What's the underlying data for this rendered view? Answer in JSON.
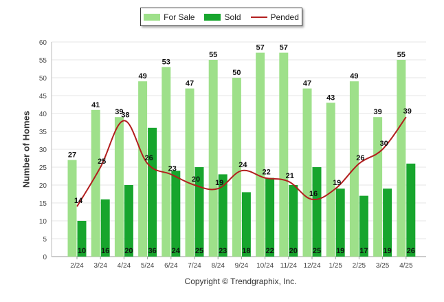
{
  "chart_data": {
    "type": "bar",
    "ylabel": "Number of Homes",
    "ylim": [
      0,
      60
    ],
    "yticks": [
      "0",
      "5",
      "10",
      "15",
      "20",
      "25",
      "30",
      "35",
      "40",
      "45",
      "50",
      "55",
      "60"
    ],
    "categories": [
      "2/24",
      "3/24",
      "4/24",
      "5/24",
      "6/24",
      "7/24",
      "8/24",
      "9/24",
      "10/24",
      "11/24",
      "12/24",
      "1/25",
      "2/25",
      "3/25",
      "4/25"
    ],
    "series": [
      {
        "name": "For Sale",
        "type": "bar",
        "color": "#9ee08a",
        "values": [
          27,
          41,
          39,
          49,
          53,
          47,
          55,
          50,
          57,
          57,
          47,
          43,
          49,
          39,
          55
        ]
      },
      {
        "name": "Sold",
        "type": "bar",
        "color": "#17a52d",
        "values": [
          10,
          16,
          20,
          36,
          24,
          25,
          23,
          18,
          22,
          20,
          25,
          19,
          17,
          19,
          26
        ]
      },
      {
        "name": "Pended",
        "type": "line",
        "color": "#b21e1e",
        "values": [
          14,
          25,
          38,
          26,
          23,
          20,
          19,
          24,
          22,
          21,
          16,
          19,
          26,
          30,
          39
        ]
      }
    ],
    "legend_position": "top-center",
    "grid": true
  },
  "footer": "Copyright © Trendgraphix, Inc."
}
